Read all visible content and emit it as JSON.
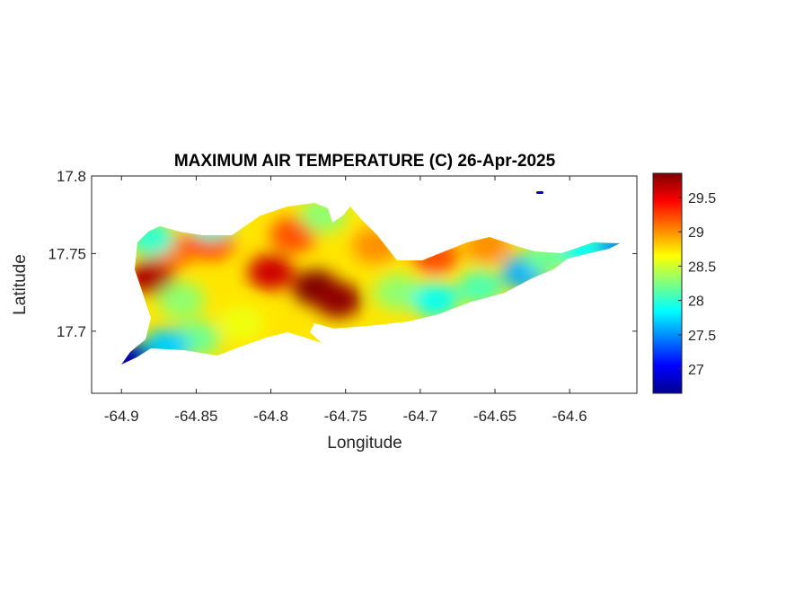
{
  "chart_data": {
    "type": "heatmap",
    "title": "MAXIMUM AIR TEMPERATURE (C) 26-Apr-2025",
    "xlabel": "Longitude",
    "ylabel": "Latitude",
    "xlim": [
      -64.92,
      -64.555
    ],
    "ylim": [
      17.66,
      17.8
    ],
    "x_ticks": [
      -64.9,
      -64.85,
      -64.8,
      -64.75,
      -64.7,
      -64.65,
      -64.6
    ],
    "x_tick_labels": [
      "-64.9",
      "-64.85",
      "-64.8",
      "-64.75",
      "-64.7",
      "-64.65",
      "-64.6"
    ],
    "y_ticks": [
      17.8,
      17.75,
      17.7
    ],
    "y_tick_labels": [
      "17.8",
      "17.75",
      "17.7"
    ],
    "colorbar": {
      "colormap": "jet",
      "clim": [
        26.65,
        29.85
      ],
      "ticks": [
        29.5,
        29,
        28.5,
        28,
        27.5,
        27
      ],
      "tick_labels": [
        "29.5",
        "29",
        "28.5",
        "28",
        "27.5",
        "27"
      ]
    },
    "hotspots": [
      {
        "lon": -64.88,
        "lat": 17.735,
        "value": 29.7
      },
      {
        "lon": -64.865,
        "lat": 17.752,
        "value": 29.1
      },
      {
        "lon": -64.84,
        "lat": 17.758,
        "value": 29.3
      },
      {
        "lon": -64.8,
        "lat": 17.738,
        "value": 29.6
      },
      {
        "lon": -64.77,
        "lat": 17.728,
        "value": 29.85
      },
      {
        "lon": -64.755,
        "lat": 17.72,
        "value": 29.8
      },
      {
        "lon": -64.785,
        "lat": 17.762,
        "value": 29.2
      },
      {
        "lon": -64.73,
        "lat": 17.755,
        "value": 29.0
      },
      {
        "lon": -64.69,
        "lat": 17.748,
        "value": 29.2
      },
      {
        "lon": -64.655,
        "lat": 17.755,
        "value": 29.0
      },
      {
        "lon": -64.86,
        "lat": 17.72,
        "value": 28.3
      },
      {
        "lon": -64.82,
        "lat": 17.705,
        "value": 28.6
      },
      {
        "lon": -64.85,
        "lat": 17.695,
        "value": 28.2
      },
      {
        "lon": -64.87,
        "lat": 17.69,
        "value": 27.7
      },
      {
        "lon": -64.895,
        "lat": 17.682,
        "value": 26.8
      },
      {
        "lon": -64.84,
        "lat": 17.77,
        "value": 28.0
      },
      {
        "lon": -64.765,
        "lat": 17.775,
        "value": 28.3
      },
      {
        "lon": -64.715,
        "lat": 17.725,
        "value": 28.3
      },
      {
        "lon": -64.69,
        "lat": 17.72,
        "value": 27.9
      },
      {
        "lon": -64.66,
        "lat": 17.728,
        "value": 28.1
      },
      {
        "lon": -64.63,
        "lat": 17.738,
        "value": 27.6
      },
      {
        "lon": -64.615,
        "lat": 17.748,
        "value": 28.2
      },
      {
        "lon": -64.59,
        "lat": 17.752,
        "value": 27.9
      },
      {
        "lon": -64.565,
        "lat": 17.755,
        "value": 27.5
      },
      {
        "lon": -64.622,
        "lat": 17.787,
        "value": 26.7
      },
      {
        "lon": -64.88,
        "lat": 17.76,
        "value": 28.0
      }
    ]
  }
}
